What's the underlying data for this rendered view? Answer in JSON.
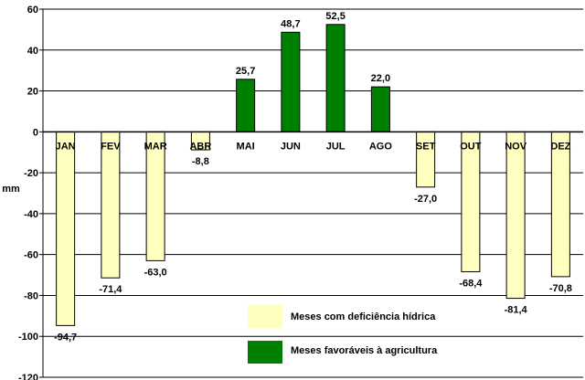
{
  "chart_data": {
    "type": "bar",
    "categories": [
      "JAN",
      "FEV",
      "MAR",
      "ABR",
      "MAI",
      "JUN",
      "JUL",
      "AGO",
      "SET",
      "OUT",
      "NOV",
      "DEZ"
    ],
    "values": [
      -94.7,
      -71.4,
      -63.0,
      -8.8,
      25.7,
      48.7,
      52.5,
      22.0,
      -27.0,
      -68.4,
      -81.4,
      -70.8
    ],
    "data_labels": [
      "-94,7",
      "-71,4",
      "-63,0",
      "-8,8",
      "25,7",
      "48,7",
      "52,5",
      "22,0",
      "-27,0",
      "-68,4",
      "-81,4",
      "-70,8"
    ],
    "ylabel": "mm",
    "ylim": [
      -120,
      60
    ],
    "yticks": [
      60,
      40,
      20,
      0,
      -20,
      -40,
      -60,
      -80,
      -100,
      -120
    ],
    "ytick_labels": [
      "60",
      "40",
      "20",
      "0",
      "-20",
      "-40",
      "-60",
      "-80",
      "-100",
      "-120"
    ],
    "grid": true,
    "legend_position": "bottom-center",
    "series": [
      {
        "name": "Meses com deficiência hídrica",
        "color": "#ffffc0"
      },
      {
        "name": "Meses favoráveis à agricultura",
        "color": "#008000"
      }
    ],
    "colors": {
      "deficit": "#ffffc0",
      "favorable": "#008000",
      "bar_stroke": "#000000",
      "grid": "#000000"
    }
  }
}
